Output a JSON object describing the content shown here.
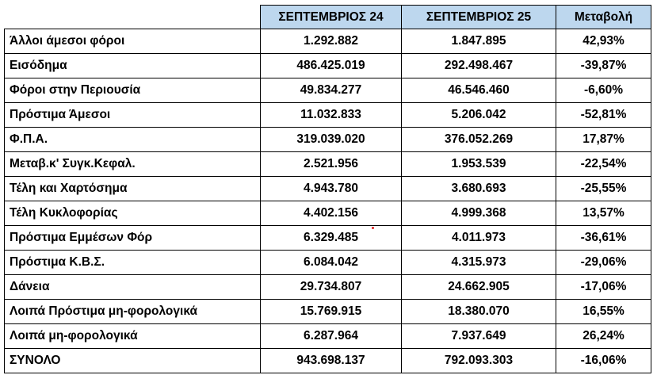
{
  "table": {
    "headers": {
      "label": "",
      "sep24": "ΣΕΠΤΕΜΒΡΙΟΣ  24",
      "sep25": "ΣΕΠΤΕΜΒΡΙΟΣ 25",
      "change": "Μεταβολή"
    },
    "header_color": "#bdd7ee",
    "rows": [
      {
        "label": "Άλλοι άμεσοι φόροι",
        "sep24": "1.292.882",
        "sep25": "1.847.895",
        "change": "42,93%"
      },
      {
        "label": "Εισόδημα",
        "sep24": "486.425.019",
        "sep25": "292.498.467",
        "change": "-39,87%"
      },
      {
        "label": "Φόροι στην Περιουσία",
        "sep24": "49.834.277",
        "sep25": "46.546.460",
        "change": "-6,60%"
      },
      {
        "label": "Πρόστιμα  Άμεσοι",
        "sep24": "11.032.833",
        "sep25": "5.206.042",
        "change": "-52,81%"
      },
      {
        "label": "Φ.Π.Α.",
        "sep24": "319.039.020",
        "sep25": "376.052.269",
        "change": "17,87%"
      },
      {
        "label": "Μεταβ.κ' Συγκ.Κεφαλ.",
        "sep24": "2.521.956",
        "sep25": "1.953.539",
        "change": "-22,54%"
      },
      {
        "label": "Τέλη και Χαρτόσημα",
        "sep24": "4.943.780",
        "sep25": "3.680.693",
        "change": "-25,55%"
      },
      {
        "label": "Τέλη Κυκλοφορίας",
        "sep24": "4.402.156",
        "sep25": "4.999.368",
        "change": "13,57%"
      },
      {
        "label": "Πρόστιμα Εμμέσων Φόρ",
        "sep24": "6.329.485",
        "sep25": "4.011.973",
        "change": "-36,61%"
      },
      {
        "label": "Πρόστιμα Κ.Β.Σ.",
        "sep24": "6.084.042",
        "sep25": "4.315.973",
        "change": "-29,06%"
      },
      {
        "label": "Δάνεια",
        "sep24": "29.734.807",
        "sep25": "24.662.905",
        "change": "-17,06%"
      },
      {
        "label": "Λοιπά Πρόστιμα μη-φορολογικά",
        "sep24": "15.769.915",
        "sep25": "18.380.070",
        "change": "16,55%"
      },
      {
        "label": "Λοιπά μη-φορολογικά",
        "sep24": "6.287.964",
        "sep25": "7.937.649",
        "change": "26,24%"
      }
    ],
    "total": {
      "label": "ΣΥΝΟΛΟ",
      "sep24": "943.698.137",
      "sep25": "792.093.303",
      "change": "-16,06%"
    }
  }
}
